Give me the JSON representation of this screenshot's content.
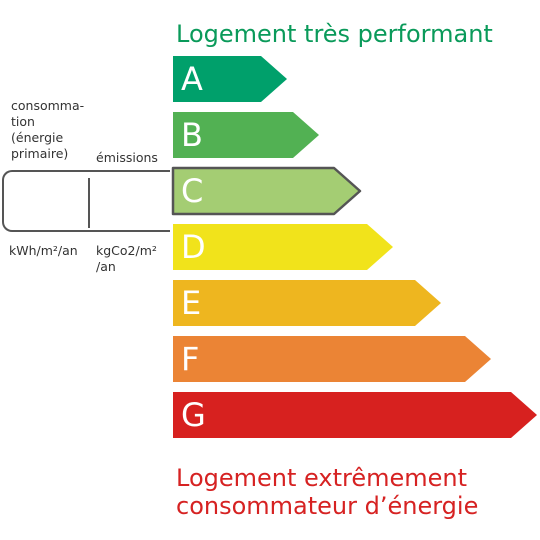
{
  "header": {
    "top_label": "Logement très performant"
  },
  "footer": {
    "bottom_label_line1": "Logement extrêmement",
    "bottom_label_line2": "consommateur d’énergie"
  },
  "labels": {
    "consumption_line1": "consomma-",
    "consumption_line2": "tion",
    "consumption_line3": "(énergie",
    "consumption_line4": "primaire)",
    "emissions": "émissions",
    "unit_energy": "kWh/m²/an",
    "unit_ges_line1": "kgCo2/m²",
    "unit_ges_line2": "/an"
  },
  "current_class": "C",
  "classes": [
    {
      "letter": "A",
      "color": "#00a06b"
    },
    {
      "letter": "B",
      "color": "#52b153"
    },
    {
      "letter": "C",
      "color": "#a4cd73"
    },
    {
      "letter": "D",
      "color": "#f1e31b"
    },
    {
      "letter": "E",
      "color": "#eeb61f"
    },
    {
      "letter": "F",
      "color": "#eb8435"
    },
    {
      "letter": "G",
      "color": "#d7211f"
    }
  ]
}
